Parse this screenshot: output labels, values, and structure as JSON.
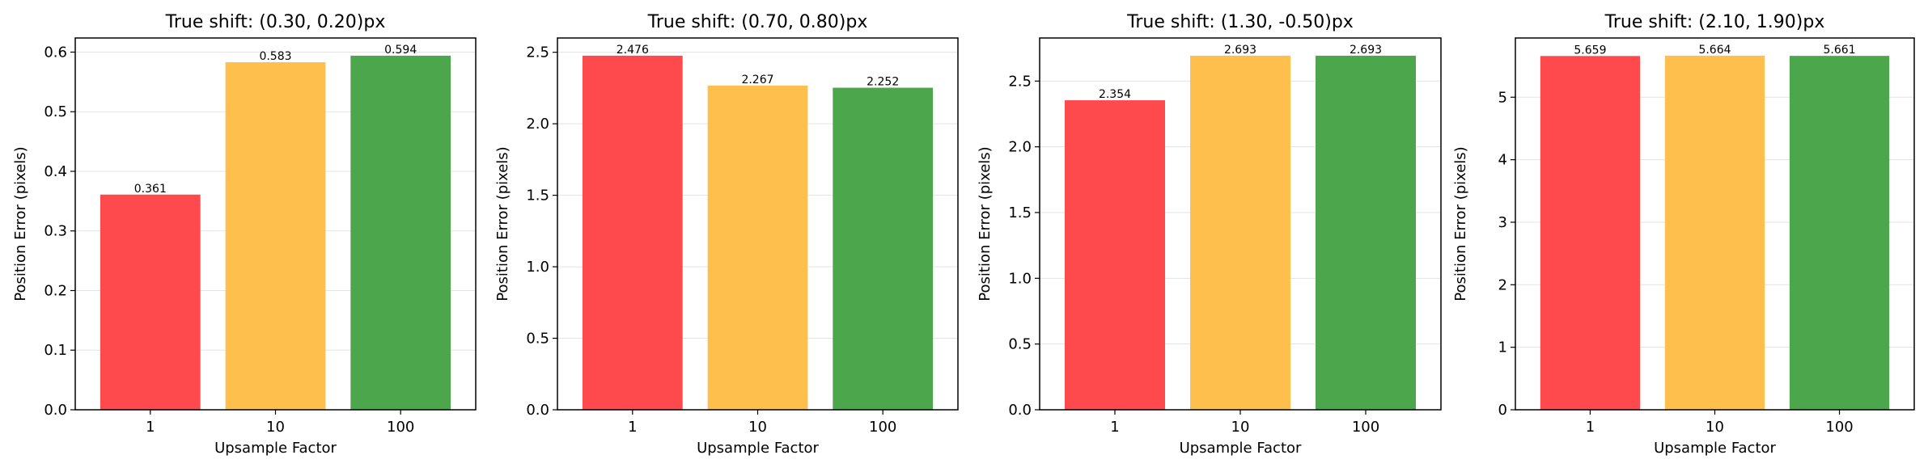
{
  "colors": {
    "bar1": "#ff4a4d",
    "bar2": "#ffbf4d",
    "bar3": "#4ca64c"
  },
  "chart_data": [
    {
      "type": "bar",
      "title": "True shift: (0.30, 0.20)px",
      "xlabel": "Upsample Factor",
      "ylabel": "Position Error (pixels)",
      "categories": [
        "1",
        "10",
        "100"
      ],
      "values": [
        0.361,
        0.583,
        0.594
      ],
      "value_labels": [
        "0.361",
        "0.583",
        "0.594"
      ],
      "ylim": [
        0,
        0.6237
      ],
      "yticks": [
        0.0,
        0.1,
        0.2,
        0.3,
        0.4,
        0.5,
        0.6
      ],
      "ytick_labels": [
        "0.0",
        "0.1",
        "0.2",
        "0.3",
        "0.4",
        "0.5",
        "0.6"
      ],
      "grid": "y"
    },
    {
      "type": "bar",
      "title": "True shift: (0.70, 0.80)px",
      "xlabel": "Upsample Factor",
      "ylabel": "Position Error (pixels)",
      "categories": [
        "1",
        "10",
        "100"
      ],
      "values": [
        2.476,
        2.267,
        2.252
      ],
      "value_labels": [
        "2.476",
        "2.267",
        "2.252"
      ],
      "ylim": [
        0,
        2.5998
      ],
      "yticks": [
        0.0,
        0.5,
        1.0,
        1.5,
        2.0,
        2.5
      ],
      "ytick_labels": [
        "0.0",
        "0.5",
        "1.0",
        "1.5",
        "2.0",
        "2.5"
      ],
      "grid": "y"
    },
    {
      "type": "bar",
      "title": "True shift: (1.30, -0.50)px",
      "xlabel": "Upsample Factor",
      "ylabel": "Position Error (pixels)",
      "categories": [
        "1",
        "10",
        "100"
      ],
      "values": [
        2.354,
        2.693,
        2.693
      ],
      "value_labels": [
        "2.354",
        "2.693",
        "2.693"
      ],
      "ylim": [
        0,
        2.8277
      ],
      "yticks": [
        0.0,
        0.5,
        1.0,
        1.5,
        2.0,
        2.5
      ],
      "ytick_labels": [
        "0.0",
        "0.5",
        "1.0",
        "1.5",
        "2.0",
        "2.5"
      ],
      "grid": "y"
    },
    {
      "type": "bar",
      "title": "True shift: (2.10, 1.90)px",
      "xlabel": "Upsample Factor",
      "ylabel": "Position Error (pixels)",
      "categories": [
        "1",
        "10",
        "100"
      ],
      "values": [
        5.659,
        5.664,
        5.661
      ],
      "value_labels": [
        "5.659",
        "5.664",
        "5.661"
      ],
      "ylim": [
        0,
        5.9472
      ],
      "yticks": [
        0,
        1,
        2,
        3,
        4,
        5
      ],
      "ytick_labels": [
        "0",
        "1",
        "2",
        "3",
        "4",
        "5"
      ],
      "grid": "y"
    }
  ]
}
